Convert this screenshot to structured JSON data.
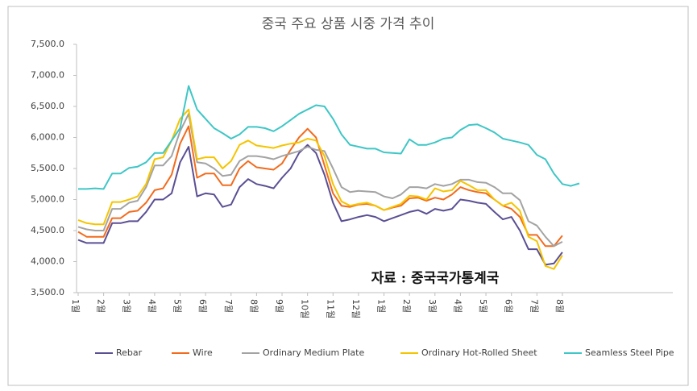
{
  "chart_data": {
    "type": "line",
    "title": "중국 주요 상품 시중 가격 추이",
    "annotation": "자료 : 중국국가통계국",
    "categories": [
      "1월",
      null,
      null,
      "2월",
      null,
      null,
      "3월",
      null,
      null,
      "4월",
      null,
      null,
      "5월",
      null,
      null,
      "6월",
      null,
      null,
      "7월",
      null,
      null,
      "8월",
      null,
      null,
      "9월",
      null,
      null,
      "10월",
      null,
      null,
      "11월",
      null,
      null,
      "12월",
      null,
      null,
      "1월",
      null,
      null,
      "2월",
      null,
      null,
      "3월",
      null,
      null,
      "4월",
      null,
      null,
      "5월",
      null,
      null,
      "6월",
      null,
      null,
      "7월",
      null,
      null,
      "8월",
      null,
      null,
      null,
      null,
      null,
      null,
      null,
      null,
      null,
      null,
      null,
      null,
      null
    ],
    "series": [
      {
        "name": "Rebar",
        "color": "#5b4f93",
        "values": [
          4350,
          4300,
          4300,
          4300,
          4620,
          4620,
          4650,
          4650,
          4800,
          5000,
          5000,
          5100,
          5600,
          5850,
          5050,
          5100,
          5080,
          4880,
          4920,
          5200,
          5330,
          5250,
          5220,
          5180,
          5350,
          5500,
          5750,
          5880,
          5750,
          5400,
          4950,
          4650,
          4680,
          4720,
          4750,
          4720,
          4650,
          4700,
          4750,
          4800,
          4830,
          4770,
          4850,
          4820,
          4850,
          5000,
          4980,
          4950,
          4930,
          4800,
          4680,
          4720,
          4500,
          4200,
          4200,
          3950,
          3970,
          4150,
          null,
          null,
          null,
          null,
          null,
          null,
          null,
          null,
          null,
          null,
          null,
          null,
          null
        ]
      },
      {
        "name": "Wire",
        "color": "#f26b1d",
        "values": [
          4480,
          4400,
          4400,
          4400,
          4700,
          4700,
          4800,
          4820,
          4950,
          5150,
          5180,
          5400,
          5900,
          6180,
          5350,
          5420,
          5420,
          5230,
          5230,
          5500,
          5620,
          5520,
          5500,
          5480,
          5580,
          5800,
          6000,
          6140,
          6000,
          5550,
          5100,
          4900,
          4880,
          4920,
          4930,
          4900,
          4830,
          4870,
          4900,
          5020,
          5030,
          4980,
          5030,
          5000,
          5080,
          5200,
          5150,
          5120,
          5100,
          5000,
          4900,
          4850,
          4720,
          4430,
          4430,
          4250,
          4250,
          4420,
          null,
          null,
          null,
          null,
          null,
          null,
          null,
          null,
          null,
          null,
          null,
          null,
          null
        ]
      },
      {
        "name": "Ordinary Medium Plate",
        "color": "#a3a3a3",
        "values": [
          4560,
          4520,
          4500,
          4500,
          4850,
          4850,
          4950,
          4980,
          5200,
          5550,
          5550,
          5700,
          6100,
          6380,
          5600,
          5580,
          5500,
          5380,
          5400,
          5620,
          5700,
          5700,
          5680,
          5650,
          5700,
          5740,
          5780,
          5850,
          5800,
          5780,
          5500,
          5200,
          5120,
          5140,
          5130,
          5120,
          5050,
          5020,
          5080,
          5200,
          5200,
          5180,
          5250,
          5220,
          5250,
          5320,
          5320,
          5280,
          5270,
          5200,
          5100,
          5100,
          4990,
          4650,
          4580,
          4400,
          4250,
          4320,
          null,
          null,
          null,
          null,
          null,
          null,
          null,
          null,
          null,
          null,
          null,
          null,
          null
        ]
      },
      {
        "name": "Ordinary Hot-Rolled Sheet",
        "color": "#f5c400",
        "values": [
          4670,
          4620,
          4600,
          4600,
          4960,
          4960,
          5000,
          5050,
          5250,
          5650,
          5680,
          5950,
          6300,
          6450,
          5650,
          5680,
          5680,
          5500,
          5620,
          5880,
          5950,
          5870,
          5850,
          5830,
          5870,
          5900,
          5920,
          5980,
          5950,
          5700,
          5250,
          4970,
          4900,
          4930,
          4950,
          4900,
          4830,
          4880,
          4930,
          5060,
          5050,
          5000,
          5180,
          5130,
          5150,
          5300,
          5230,
          5150,
          5150,
          5000,
          4900,
          4950,
          4820,
          4400,
          4330,
          3930,
          3880,
          4100,
          null,
          null,
          null,
          null,
          null,
          null,
          null,
          null,
          null,
          null,
          null,
          null,
          null
        ]
      },
      {
        "name": "Seamless Steel Pipe",
        "color": "#3fc6c6",
        "values": [
          5170,
          5170,
          5180,
          5170,
          5420,
          5420,
          5510,
          5530,
          5600,
          5750,
          5750,
          5950,
          6150,
          6830,
          6450,
          6300,
          6150,
          6070,
          5980,
          6050,
          6170,
          6170,
          6150,
          6100,
          6180,
          6280,
          6380,
          6450,
          6520,
          6500,
          6300,
          6050,
          5880,
          5850,
          5820,
          5820,
          5760,
          5750,
          5740,
          5970,
          5880,
          5880,
          5920,
          5980,
          6000,
          6120,
          6200,
          6210,
          6150,
          6080,
          5980,
          5950,
          5920,
          5880,
          5720,
          5650,
          5420,
          5250,
          5220,
          5260,
          null,
          null,
          null,
          null,
          null,
          null,
          null,
          null,
          null,
          null,
          null
        ]
      }
    ],
    "ylim": [
      3500,
      7500
    ],
    "yticks": [
      {
        "value": 3500,
        "label": "3,500.0"
      },
      {
        "value": 4000,
        "label": "4,000.0"
      },
      {
        "value": 4500,
        "label": "4,500.0"
      },
      {
        "value": 5000,
        "label": "5,000.0"
      },
      {
        "value": 5500,
        "label": "5,500.0"
      },
      {
        "value": 6000,
        "label": "6,000.0"
      },
      {
        "value": 6500,
        "label": "6,500.0"
      },
      {
        "value": 7000,
        "label": "7,000.0"
      },
      {
        "value": 7500,
        "label": "7,500.0"
      }
    ],
    "grid": false,
    "legend": "bottom"
  }
}
